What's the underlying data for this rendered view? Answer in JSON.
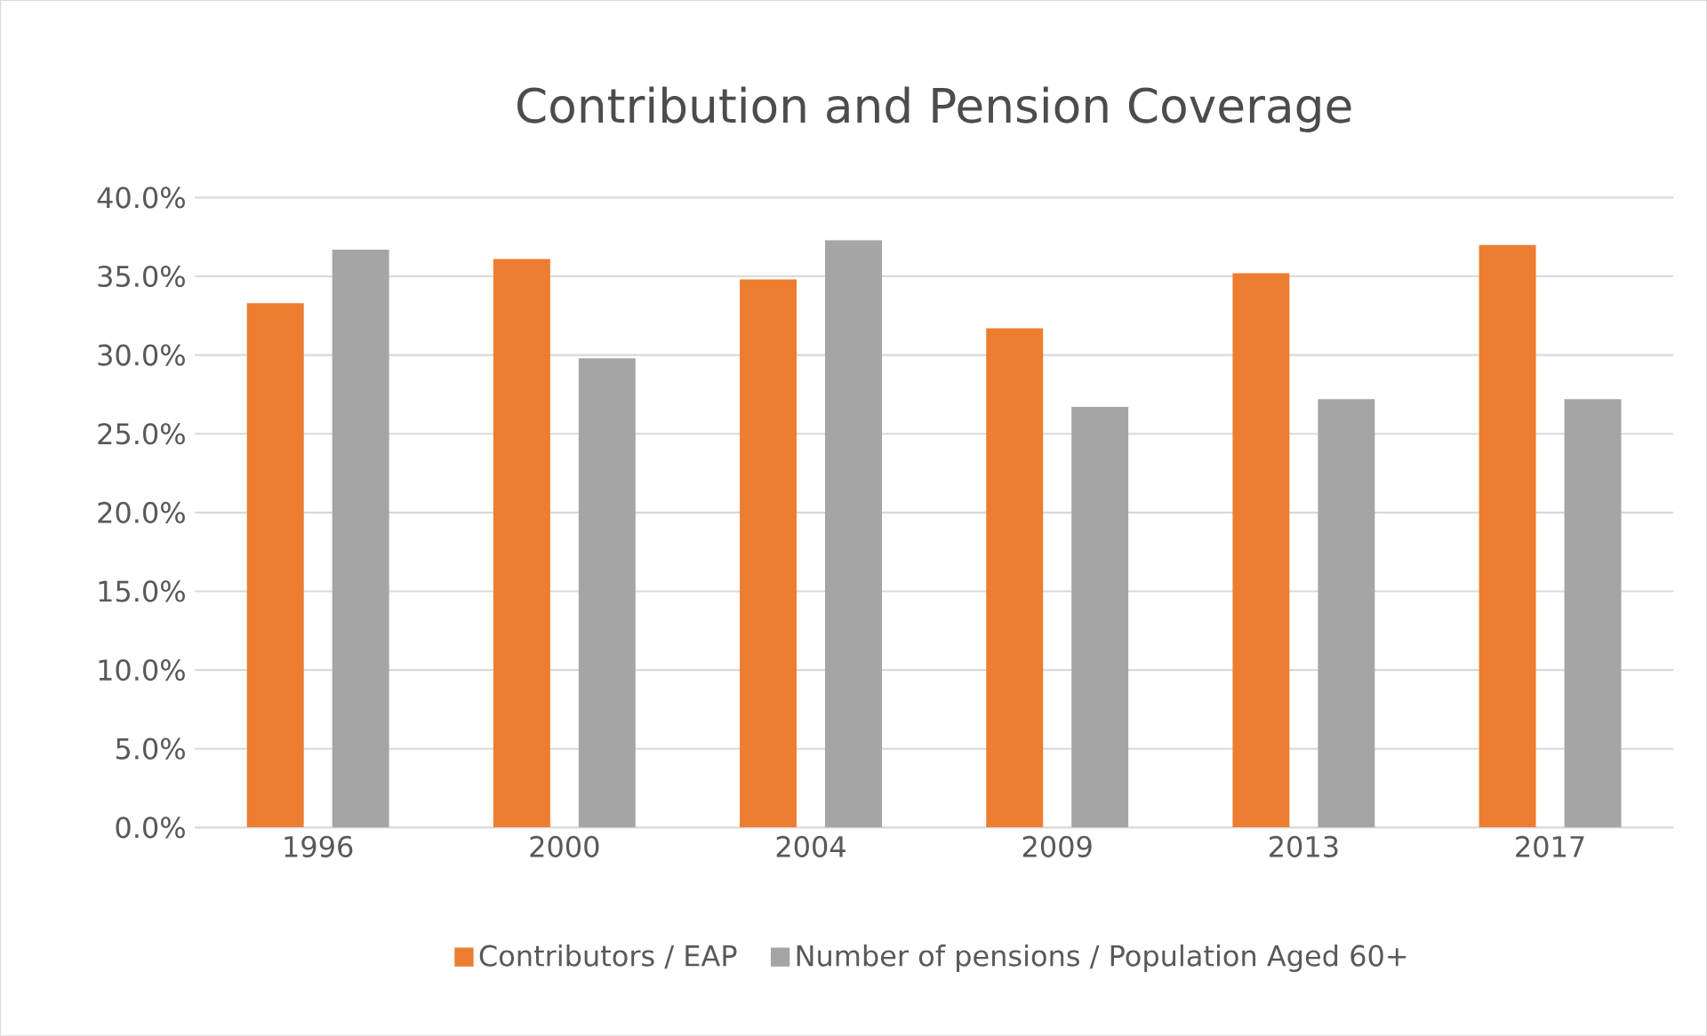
{
  "chart_data": {
    "type": "bar",
    "title": "Contribution and Pension Coverage",
    "categories": [
      "1996",
      "2000",
      "2004",
      "2009",
      "2013",
      "2017"
    ],
    "series": [
      {
        "name": "Contributors / EAP",
        "color": "#ed7d31",
        "values": [
          33.3,
          36.1,
          34.8,
          31.7,
          35.2,
          37.0
        ]
      },
      {
        "name": "Number of pensions / Population Aged 60+",
        "color": "#a5a5a5",
        "values": [
          36.7,
          29.8,
          37.3,
          26.7,
          27.2,
          27.2
        ]
      }
    ],
    "ylim": [
      0,
      40
    ],
    "yticks": [
      {
        "value": 0,
        "label": "0.0%"
      },
      {
        "value": 5,
        "label": "5.0%"
      },
      {
        "value": 10,
        "label": "10.0%"
      },
      {
        "value": 15,
        "label": "15.0%"
      },
      {
        "value": 20,
        "label": "20.0%"
      },
      {
        "value": 25,
        "label": "25.0%"
      },
      {
        "value": 30,
        "label": "30.0%"
      },
      {
        "value": 35,
        "label": "35.0%"
      },
      {
        "value": 40,
        "label": "40.0%"
      }
    ],
    "grid": "y",
    "legend": "bottom"
  }
}
